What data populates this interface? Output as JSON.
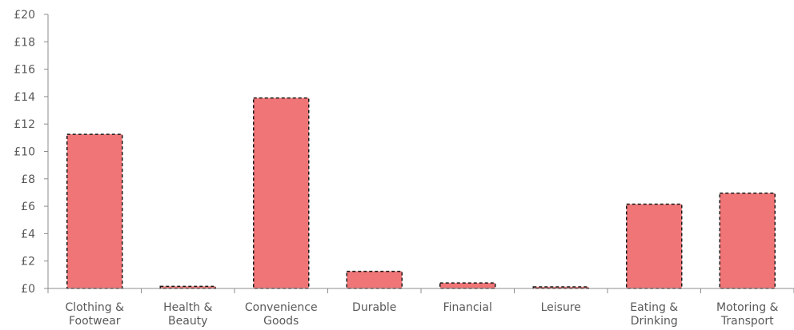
{
  "chart_data": {
    "type": "bar",
    "title": "",
    "xlabel": "",
    "ylabel": "",
    "categories": [
      [
        "Clothing &",
        "Footwear"
      ],
      [
        "Health &",
        "Beauty"
      ],
      [
        "Convenience",
        "Goods"
      ],
      [
        "Durable"
      ],
      [
        "Financial"
      ],
      [
        "Leisure"
      ],
      [
        "Eating &",
        "Drinking"
      ],
      [
        "Motoring &",
        "Transport"
      ]
    ],
    "values": [
      11.25,
      0.15,
      13.9,
      1.25,
      0.4,
      0.12,
      6.15,
      6.95
    ],
    "ylim": [
      0,
      20
    ],
    "yticks": [
      0,
      2,
      4,
      6,
      8,
      10,
      12,
      14,
      16,
      18,
      20
    ],
    "ytick_prefix": "£",
    "grid": false,
    "bar_color": "#f07577",
    "bar_edge_color": "#1a1a1a",
    "axis_color": "#8c8c8c",
    "text_color": "#595959"
  }
}
